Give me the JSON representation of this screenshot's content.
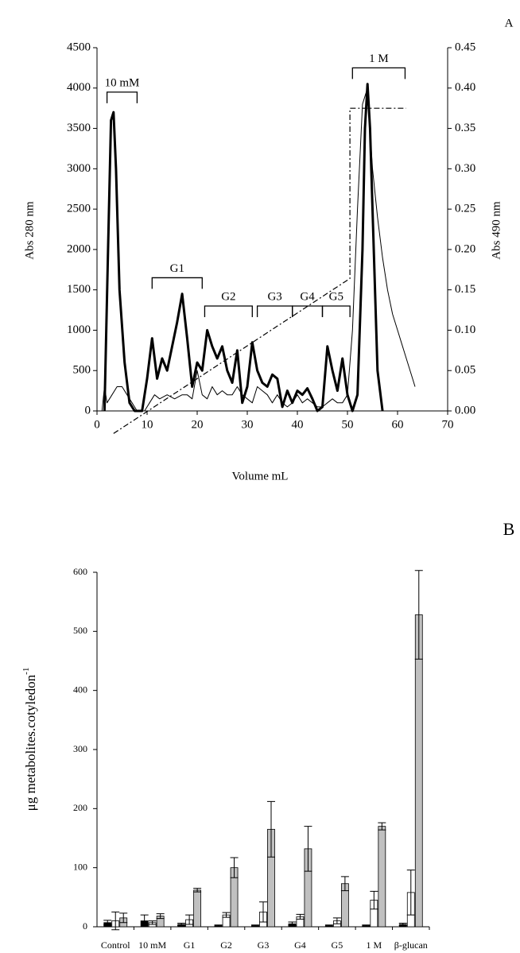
{
  "chart_data": [
    {
      "type": "line",
      "panel": "A",
      "x_label": "Volume mL",
      "y_label": "Abs 280 nm",
      "y2_label": "Abs 490 nm",
      "xlim": [
        0,
        70
      ],
      "xticks": [
        0,
        10,
        20,
        30,
        40,
        50,
        60,
        70
      ],
      "ylim": [
        0,
        4500
      ],
      "yticks": [
        0,
        500,
        1000,
        1500,
        2000,
        2500,
        3000,
        3500,
        4000,
        4500
      ],
      "y2lim": [
        0,
        0.45
      ],
      "y2ticks": [
        {
          "value": 0,
          "label": "0.00"
        },
        0.05,
        {
          "value": 0.1,
          "label": "0.10"
        },
        0.15,
        {
          "value": 0.2,
          "label": "0.20"
        },
        0.25,
        {
          "value": 0.3,
          "label": "0.30"
        },
        0.35,
        {
          "value": 0.4,
          "label": "0.40"
        },
        0.45
      ],
      "series": [
        {
          "color": "#000000",
          "style": "thick",
          "x": [
            1.5,
            2.2,
            2.8,
            3.3,
            3.8,
            4.5,
            5.5,
            6.5,
            7.5,
            9,
            10,
            11,
            12,
            13,
            14,
            15,
            16,
            17,
            18,
            19,
            20,
            21,
            22,
            23,
            24,
            25,
            26,
            27,
            28,
            29,
            30,
            31,
            32,
            33,
            34,
            35,
            36,
            37,
            38,
            39,
            40,
            41,
            42,
            43,
            44,
            45,
            46,
            47,
            48,
            49,
            50,
            51,
            52,
            53,
            53.5,
            54,
            54.5,
            55,
            56,
            57
          ],
          "values": [
            0,
            2000,
            3600,
            3700,
            3000,
            1500,
            600,
            100,
            0,
            0,
            400,
            900,
            400,
            650,
            500,
            800,
            1100,
            1450,
            900,
            300,
            600,
            500,
            1000,
            800,
            650,
            800,
            500,
            350,
            750,
            100,
            300,
            850,
            500,
            350,
            300,
            450,
            400,
            50,
            250,
            100,
            250,
            200,
            280,
            150,
            0,
            50,
            800,
            500,
            250,
            650,
            200,
            0,
            200,
            2000,
            3500,
            4050,
            3500,
            2500,
            500,
            0
          ]
        },
        {
          "color": "#000000",
          "style": "thin",
          "axis": "y2",
          "x": [
            0.5,
            1,
            1.5,
            2,
            3,
            4,
            5,
            6,
            7,
            8,
            9.5,
            10.5,
            11.5,
            12.5,
            14,
            15.5,
            17,
            18,
            19,
            20,
            21,
            22,
            23,
            24,
            25,
            26,
            27,
            28,
            29,
            30,
            31,
            32,
            33,
            34,
            35,
            36,
            37,
            38,
            39,
            40,
            41,
            42,
            43,
            44,
            45,
            46,
            47,
            48,
            49,
            50,
            51,
            52,
            53,
            54,
            55,
            56,
            57,
            58,
            59,
            60,
            61,
            62,
            63,
            63.5
          ],
          "values": [
            0,
            0,
            0.03,
            0.01,
            0.02,
            0.03,
            0.03,
            0.02,
            0.01,
            0,
            0,
            0.01,
            0.02,
            0.015,
            0.02,
            0.015,
            0.02,
            0.02,
            0.015,
            0.05,
            0.02,
            0.015,
            0.03,
            0.02,
            0.025,
            0.02,
            0.02,
            0.03,
            0.02,
            0.015,
            0.01,
            0.03,
            0.025,
            0.02,
            0.01,
            0.02,
            0.01,
            0.005,
            0.01,
            0.02,
            0.01,
            0.015,
            0.01,
            0.005,
            0.005,
            0.01,
            0.015,
            0.01,
            0.01,
            0.02,
            0.1,
            0.25,
            0.38,
            0.4,
            0.3,
            0.24,
            0.19,
            0.15,
            0.12,
            0.1,
            0.08,
            0.06,
            0.04,
            0.03
          ]
        },
        {
          "color": "#000000",
          "style": "dashdot",
          "axis": "y2",
          "x": [
            3.3,
            50.5,
            50.5,
            61.7
          ],
          "values": [
            -0.028,
            0.164,
            0.375,
            0.375
          ]
        }
      ],
      "annotations": [
        {
          "label": "10 mM",
          "x": [
            2,
            8
          ],
          "y": 3950
        },
        {
          "label": "G1",
          "x": [
            11,
            21
          ],
          "y": 1650
        },
        {
          "label": "G2",
          "x": [
            21.5,
            31
          ],
          "y": 1300
        },
        {
          "label": "G3",
          "x": [
            32,
            39
          ],
          "y": 1300
        },
        {
          "label": "G4",
          "x": [
            39,
            45
          ],
          "y": 1300
        },
        {
          "label": "G5",
          "x": [
            45,
            50.5
          ],
          "y": 1300
        },
        {
          "label": "1 M",
          "x": [
            51,
            61.5
          ],
          "y": 4250
        }
      ]
    },
    {
      "type": "bar",
      "panel": "B",
      "y_label": "μg metabolites.cotyledon",
      "y_label_superscript": "-1",
      "categories": [
        "Control",
        "10 mM",
        "G1",
        "G2",
        "G3",
        "G4",
        "G5",
        "1 M",
        "β-glucan"
      ],
      "ylim": [
        0,
        600
      ],
      "yticks": [
        0,
        100,
        200,
        300,
        400,
        500,
        600
      ],
      "series": [
        {
          "color": "#000000",
          "values": [
            7,
            10,
            4,
            2,
            2,
            5,
            2,
            2,
            4
          ],
          "errors": [
            4,
            10,
            2,
            1,
            1,
            3,
            1,
            1,
            2
          ]
        },
        {
          "color": "#ffffff",
          "values": [
            10,
            7,
            12,
            20,
            25,
            17,
            10,
            45,
            58
          ],
          "errors": [
            15,
            3,
            8,
            4,
            17,
            4,
            5,
            15,
            38
          ]
        },
        {
          "color": "#c0c0c0",
          "values": [
            15,
            18,
            62,
            100,
            165,
            132,
            73,
            170,
            528
          ],
          "errors": [
            8,
            4,
            3,
            17,
            47,
            38,
            12,
            6,
            75
          ]
        }
      ]
    }
  ]
}
